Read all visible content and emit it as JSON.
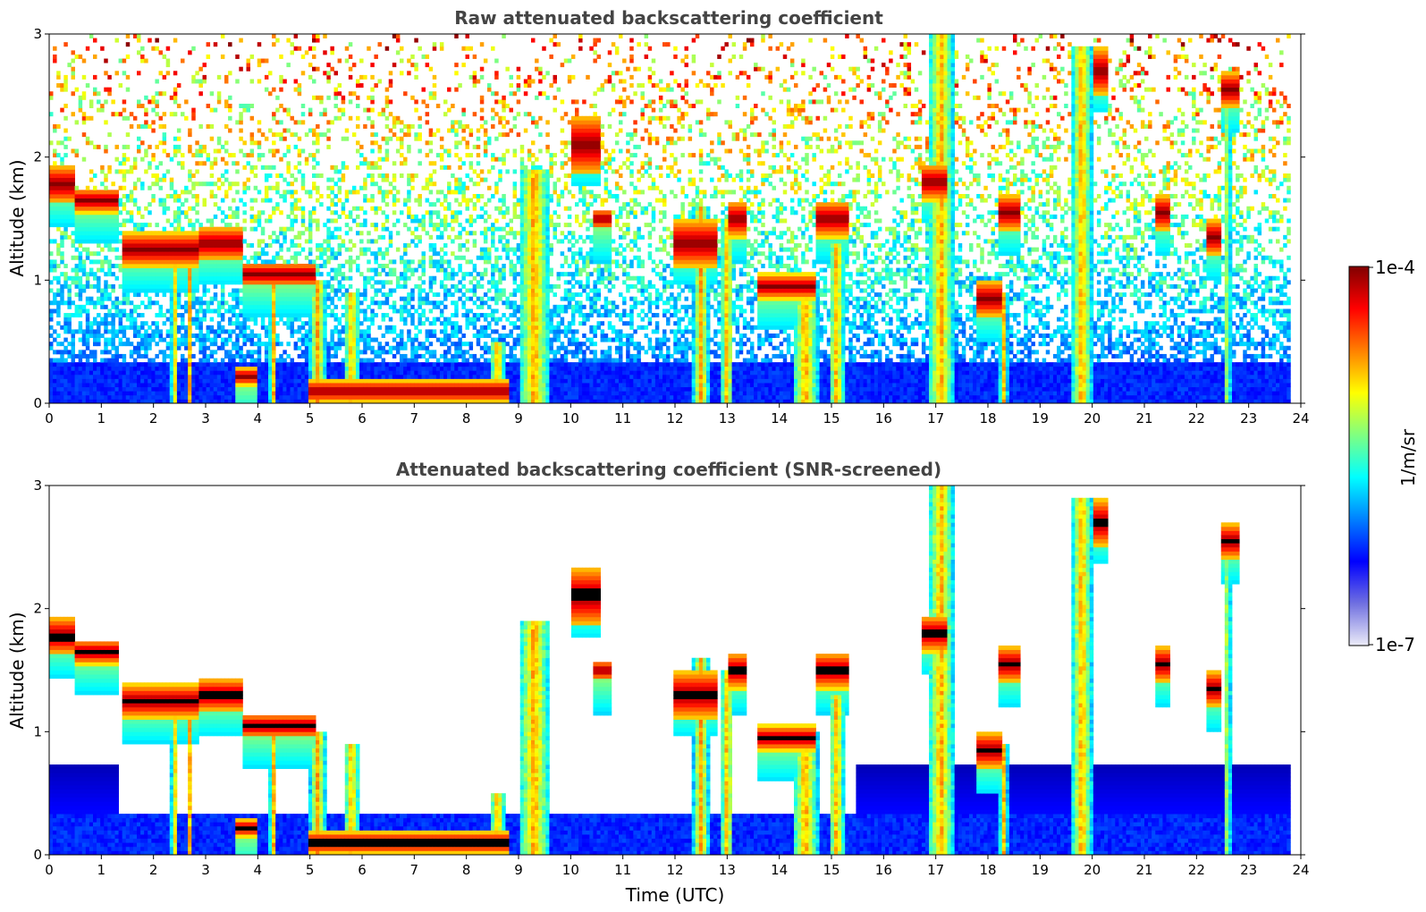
{
  "chart_data": [
    {
      "type": "heatmap",
      "title": "Raw attenuated backscattering coefficient",
      "xlabel": "",
      "ylabel": "Altitude (km)",
      "xlim": [
        0,
        24
      ],
      "ylim": [
        0,
        3
      ],
      "xticks": [
        "0",
        "1",
        "2",
        "3",
        "4",
        "5",
        "6",
        "7",
        "8",
        "9",
        "10",
        "11",
        "12",
        "13",
        "14",
        "15",
        "16",
        "17",
        "18",
        "19",
        "20",
        "21",
        "22",
        "23",
        "24"
      ],
      "yticks": [
        "0",
        "1",
        "2",
        "3"
      ],
      "screened": false,
      "colorscale": "jet (log)",
      "data_end_hour": 23.8,
      "layers": [
        {
          "t0": 0.0,
          "t1": 0.5,
          "alt": 1.78,
          "thk": 0.16
        },
        {
          "t0": 0.5,
          "t1": 1.3,
          "alt": 1.65,
          "thk": 0.1
        },
        {
          "t0": 1.4,
          "t1": 2.9,
          "alt": 1.25,
          "thk": 0.14
        },
        {
          "t0": 2.9,
          "t1": 3.7,
          "alt": 1.3,
          "thk": 0.14
        },
        {
          "t0": 3.7,
          "t1": 5.1,
          "alt": 1.05,
          "thk": 0.1
        },
        {
          "t0": 3.6,
          "t1": 4.0,
          "alt": 0.22,
          "thk": 0.07
        },
        {
          "t0": 5.0,
          "t1": 8.8,
          "alt": 0.1,
          "thk": 0.09
        },
        {
          "t0": 10.0,
          "t1": 10.6,
          "alt": 2.1,
          "thk": 0.25
        },
        {
          "t0": 10.4,
          "t1": 10.8,
          "alt": 1.5,
          "thk": 0.08
        },
        {
          "t0": 12.0,
          "t1": 12.8,
          "alt": 1.3,
          "thk": 0.2
        },
        {
          "t0": 13.0,
          "t1": 13.4,
          "alt": 1.5,
          "thk": 0.15
        },
        {
          "t0": 13.6,
          "t1": 14.7,
          "alt": 0.95,
          "thk": 0.1
        },
        {
          "t0": 14.7,
          "t1": 15.3,
          "alt": 1.5,
          "thk": 0.15
        },
        {
          "t0": 16.7,
          "t1": 17.2,
          "alt": 1.8,
          "thk": 0.15
        },
        {
          "t0": 17.8,
          "t1": 18.3,
          "alt": 0.85,
          "thk": 0.15
        },
        {
          "t0": 18.2,
          "t1": 18.6,
          "alt": 1.55,
          "thk": 0.15
        },
        {
          "t0": 20.0,
          "t1": 20.3,
          "alt": 2.7,
          "thk": 0.2
        },
        {
          "t0": 21.2,
          "t1": 21.5,
          "alt": 1.55,
          "thk": 0.15
        },
        {
          "t0": 22.2,
          "t1": 22.5,
          "alt": 1.35,
          "thk": 0.15
        },
        {
          "t0": 22.5,
          "t1": 22.8,
          "alt": 2.55,
          "thk": 0.15
        }
      ],
      "columns": [
        {
          "t": 2.4,
          "w": 0.12,
          "top": 1.2
        },
        {
          "t": 2.7,
          "w": 0.12,
          "top": 1.2
        },
        {
          "t": 4.3,
          "w": 0.15,
          "top": 1.0
        },
        {
          "t": 5.15,
          "w": 0.3,
          "top": 1.0
        },
        {
          "t": 5.8,
          "w": 0.3,
          "top": 0.9
        },
        {
          "t": 8.6,
          "w": 0.3,
          "top": 0.5
        },
        {
          "t": 9.3,
          "w": 0.6,
          "top": 1.9
        },
        {
          "t": 12.5,
          "w": 0.3,
          "top": 1.6
        },
        {
          "t": 13.0,
          "w": 0.25,
          "top": 1.5
        },
        {
          "t": 14.5,
          "w": 0.5,
          "top": 1.0
        },
        {
          "t": 15.1,
          "w": 0.3,
          "top": 1.3
        },
        {
          "t": 17.1,
          "w": 0.5,
          "top": 3.0
        },
        {
          "t": 18.3,
          "w": 0.15,
          "top": 0.9
        },
        {
          "t": 19.8,
          "w": 0.4,
          "top": 2.9
        },
        {
          "t": 22.6,
          "w": 0.1,
          "top": 2.5
        }
      ]
    },
    {
      "type": "heatmap",
      "title": "Attenuated backscattering coefficient (SNR-screened)",
      "xlabel": "Time (UTC)",
      "ylabel": "Altitude (km)",
      "xlim": [
        0,
        24
      ],
      "ylim": [
        0,
        3
      ],
      "xticks": [
        "0",
        "1",
        "2",
        "3",
        "4",
        "5",
        "6",
        "7",
        "8",
        "9",
        "10",
        "11",
        "12",
        "13",
        "14",
        "15",
        "16",
        "17",
        "18",
        "19",
        "20",
        "21",
        "22",
        "23",
        "24"
      ],
      "yticks": [
        "0",
        "1",
        "2",
        "3"
      ],
      "screened": true,
      "colorscale": "jet (log)",
      "data_end_hour": 23.8
    }
  ],
  "colorbar": {
    "label": "1/m/sr",
    "max_label": "1e-4",
    "min_label": "1e-7",
    "stops": [
      "#800000",
      "#ff0000",
      "#ff8000",
      "#ffff00",
      "#80ff80",
      "#00ffff",
      "#0080ff",
      "#0000ff",
      "#7070e0",
      "#ececf8"
    ]
  }
}
